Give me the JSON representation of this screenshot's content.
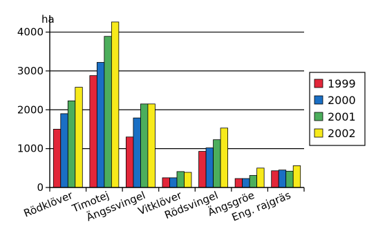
{
  "chart_data": {
    "type": "bar",
    "title": "",
    "ylabel": "ha",
    "xlabel": "",
    "ylim": [
      0,
      4400
    ],
    "yticks": [
      0,
      1000,
      2000,
      3000,
      4000
    ],
    "grid": "horizontal",
    "legend_position": "right",
    "categories": [
      "Rödklöver",
      "Timotej",
      "Ängssvingel",
      "Vitklöver",
      "Rödsvingel",
      "Ängsgröe",
      "Eng. rajgräs"
    ],
    "series": [
      {
        "name": "1999",
        "color": "#e2273a",
        "values": [
          1500,
          2880,
          1300,
          250,
          930,
          230,
          430
        ]
      },
      {
        "name": "2000",
        "color": "#1a6fc4",
        "values": [
          1900,
          3220,
          1790,
          250,
          1020,
          230,
          450
        ]
      },
      {
        "name": "2001",
        "color": "#4cae5c",
        "values": [
          2230,
          3890,
          2150,
          410,
          1230,
          310,
          420
        ]
      },
      {
        "name": "2002",
        "color": "#f7ea1b",
        "values": [
          2580,
          4260,
          2150,
          390,
          1530,
          500,
          560
        ]
      }
    ]
  }
}
